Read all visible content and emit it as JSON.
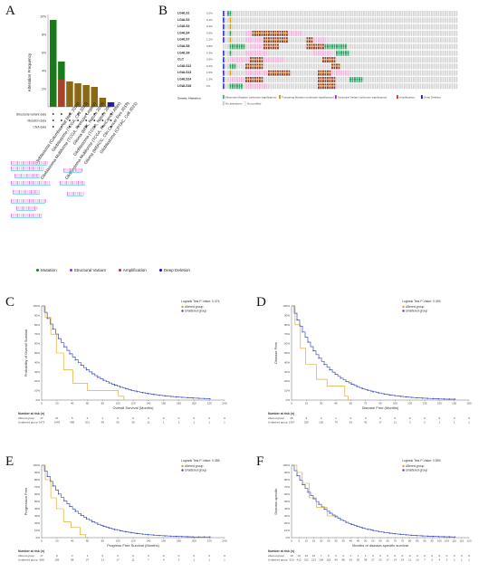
{
  "panels": {
    "a": "A",
    "b": "B",
    "c": "C",
    "d": "D",
    "e": "E",
    "f": "F"
  },
  "panel_a": {
    "ylabel": "Alteration Frequency",
    "row_labels": [
      "Structural variant data",
      "Mutation data",
      "CNA data"
    ],
    "legend": [
      "Mutation",
      "Structural Variant",
      "Amplification",
      "Deep Deletion"
    ],
    "legend_colors": [
      "#1a7a1a",
      "#a020f0",
      "#d62728",
      "#0000ff"
    ],
    "studies": [
      "Glioblastoma (Columbia, Nat Med. 2019)",
      "Glioblastoma (TCGA, Cell 2013)",
      "Glioblastoma Multiforme (TCGA, Firehose Legacy)",
      "Glioma (MSK, Nature 2019)",
      "Glioblastoma (TCGA, Nature 2008)",
      "Glioblastoma Multiforme (TCGA, PanCancer Atlas)",
      "Glioma (MSKCC, Clin Cancer Res 2019)",
      "Glioblastoma (CPTAC, Cell 2021)"
    ],
    "chart_data": {
      "type": "bar",
      "ylabel": "Alteration Frequency",
      "yticks": [
        "10%",
        "8%",
        "6%",
        "4%",
        "2%"
      ],
      "ylim": [
        0,
        10
      ],
      "values": [
        9.6,
        5.0,
        2.8,
        2.6,
        2.4,
        2.2,
        1.0,
        0.5
      ],
      "colors": [
        "#1a7a1a",
        "#1a7a1a",
        "#8b6914",
        "#8b6914",
        "#8b6914",
        "#8b6914",
        "#8b6914",
        "#2222cc"
      ]
    }
  },
  "panel_b": {
    "genes": [
      "LGALS1",
      "LGALS2",
      "LGALS3",
      "LGALS4",
      "LGALS7",
      "LGALS8",
      "LGALS9",
      "CLC",
      "LGALS12",
      "LGALS13",
      "LGALS14",
      "LGALS16"
    ],
    "pcts": [
      "0.2%",
      "0.1%",
      "0.1%",
      "0.5%",
      "1.2%",
      "0.8%",
      "0.3%",
      "0.5%",
      "0.2%",
      "1.6%",
      "1.3%",
      "1%"
    ],
    "legend_title": "Genetic Alteration",
    "legend_items": [
      "Missense Mutation (unknown significance)",
      "Truncating Mutation (unknown significance)",
      "Structural Variant (unknown significance)",
      "Amplification",
      "Deep Deletion",
      "No alterations",
      "Not profiled"
    ]
  },
  "km": [
    {
      "id": "c",
      "legend_title": "Logrank Test P-Value: 0.474",
      "series": [
        "Altered group",
        "Unaltered group"
      ],
      "ylabel": "Probability of Overall Survival",
      "xlabel": "Overall Survival (Months)",
      "xticks": [
        "0",
        "20",
        "40",
        "60",
        "80",
        "100",
        "120",
        "140",
        "160",
        "180",
        "200",
        "220",
        "240"
      ],
      "risk_title": "Number at risk (n)",
      "risk_rows": [
        [
          "Altered group",
          "37",
          "21",
          "5",
          "2",
          "1",
          "0",
          "0",
          "0",
          "0",
          "0",
          "0",
          "0",
          "0"
        ],
        [
          "Unaltered group",
          "2473",
          "1443",
          "456",
          "201",
          "99",
          "55",
          "30",
          "11",
          "1",
          "1",
          "1",
          "1",
          "1"
        ]
      ]
    },
    {
      "id": "d",
      "legend_title": "Logrank Test P-Value: 0.393",
      "series": [
        "Altered group",
        "Unaltered group"
      ],
      "ylabel": "Disease Free",
      "xlabel": "Disease Free (Months)",
      "xticks": [
        "0",
        "15",
        "30",
        "45",
        "60",
        "75",
        "90",
        "105",
        "120",
        "135",
        "150",
        "165",
        "180"
      ],
      "risk_title": "Number at risk (n)",
      "risk_rows": [
        [
          "Altered group",
          "26",
          "9",
          "4",
          "1",
          "0",
          "0",
          "0",
          "0",
          "0",
          "0",
          "0",
          "0",
          "0"
        ],
        [
          "Unaltered group",
          "1367",
          "329",
          "120",
          "74",
          "53",
          "42",
          "17",
          "11",
          "3",
          "2",
          "1",
          "1",
          "1"
        ]
      ]
    },
    {
      "id": "e",
      "legend_title": "Logrank Test P-Value: 0.385",
      "series": [
        "Altered group",
        "Unaltered group"
      ],
      "ylabel": "Progression Free",
      "xlabel": "Progress Free Survival (Months)",
      "xticks": [
        "0",
        "20",
        "40",
        "60",
        "80",
        "100",
        "120",
        "140",
        "160",
        "180",
        "200",
        "220",
        "240"
      ],
      "risk_title": "Number at risk (n)",
      "risk_rows": [
        [
          "Altered group",
          "17",
          "8",
          "3",
          "1",
          "0",
          "0",
          "0",
          "0",
          "0",
          "0",
          "0",
          "0",
          "0"
        ],
        [
          "Unaltered group",
          "588",
          "156",
          "58",
          "27",
          "21",
          "17",
          "11",
          "7",
          "4",
          "3",
          "1",
          "1",
          "1"
        ]
      ]
    },
    {
      "id": "f",
      "legend_title": "Logrank Test P-Value: 0.893",
      "series": [
        "Altered group",
        "Unaltered group"
      ],
      "ylabel": "Disease-specific",
      "xlabel": "Months of disease-specific survival",
      "xticks": [
        "0",
        "5",
        "10",
        "15",
        "20",
        "25",
        "30",
        "35",
        "40",
        "45",
        "50",
        "55",
        "60",
        "65",
        "70",
        "75",
        "80",
        "85",
        "90",
        "95",
        "100",
        "105",
        "110",
        "115",
        "120"
      ],
      "risk_title": "Number at risk (n)",
      "risk_rows": [
        [
          "Altered group",
          "10",
          "10",
          "10",
          "10",
          "7",
          "5",
          "3",
          "2",
          "1",
          "1",
          "1",
          "0",
          "0",
          "0",
          "0",
          "0",
          "0",
          "0",
          "0",
          "0",
          "0",
          "0",
          "0",
          "0",
          "0"
        ],
        [
          "Unaltered group",
          "520",
          "412",
          "312",
          "213",
          "154",
          "118",
          "94",
          "88",
          "63",
          "50",
          "38",
          "27",
          "23",
          "17",
          "14",
          "14",
          "11",
          "10",
          "7",
          "5",
          "4",
          "3",
          "2",
          "1",
          "1"
        ]
      ]
    }
  ],
  "km_yticks": [
    "100%",
    "90%",
    "80%",
    "70%",
    "60%",
    "50%",
    "40%",
    "30%",
    "20%",
    "10%",
    "0%"
  ],
  "colors": {
    "altered": "#d4a017",
    "unaltered": "#4a3fbf",
    "curve": "#3a52c4"
  }
}
